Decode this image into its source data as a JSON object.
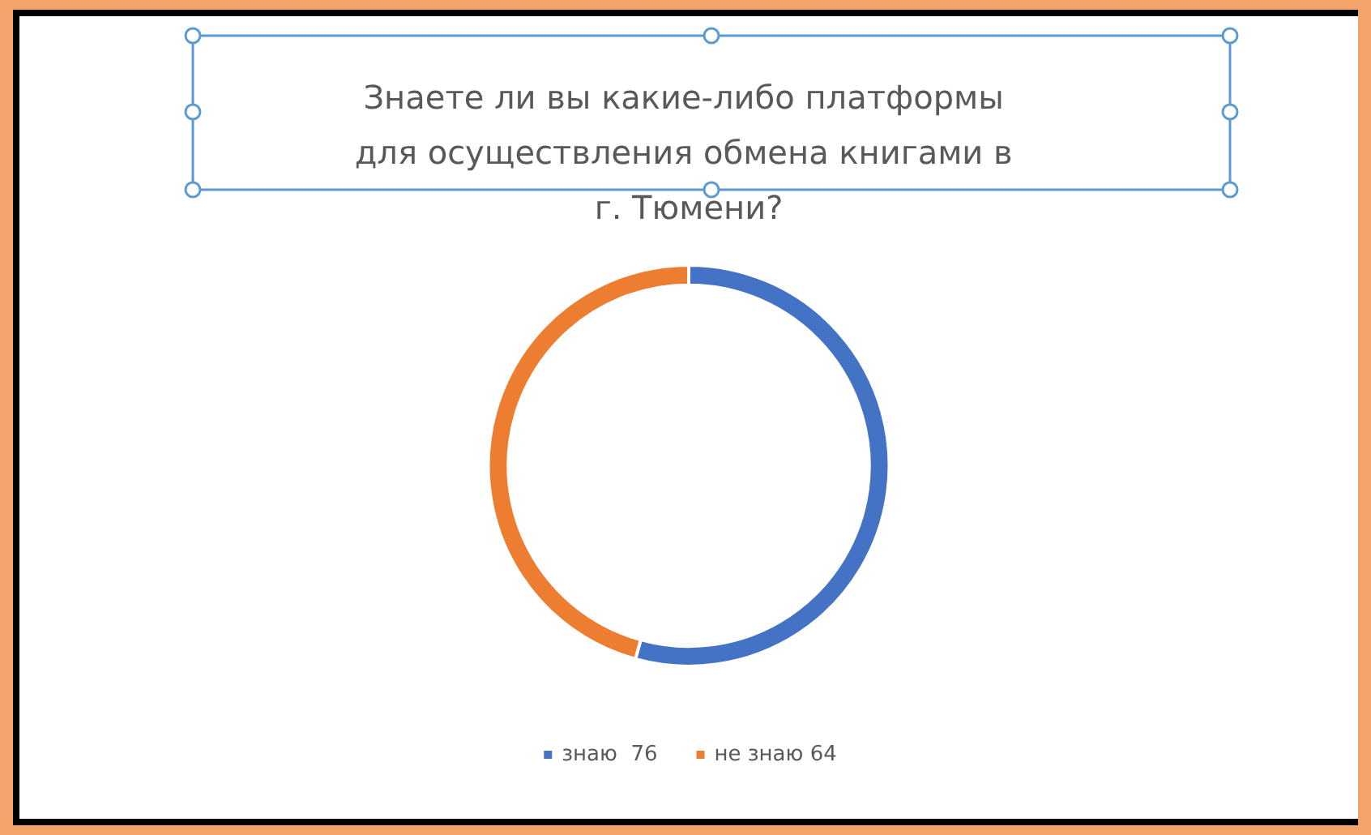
{
  "chart_data": {
    "type": "donut",
    "title": "Знаете ли вы какие-либо платформы для осуществления обмена книгами в г. Тюмени?",
    "categories": [
      "знаю  76",
      "не знаю 64"
    ],
    "values": [
      76,
      64
    ],
    "colors": [
      "#4472c4",
      "#ed7d31"
    ],
    "legend": "bottom"
  }
}
